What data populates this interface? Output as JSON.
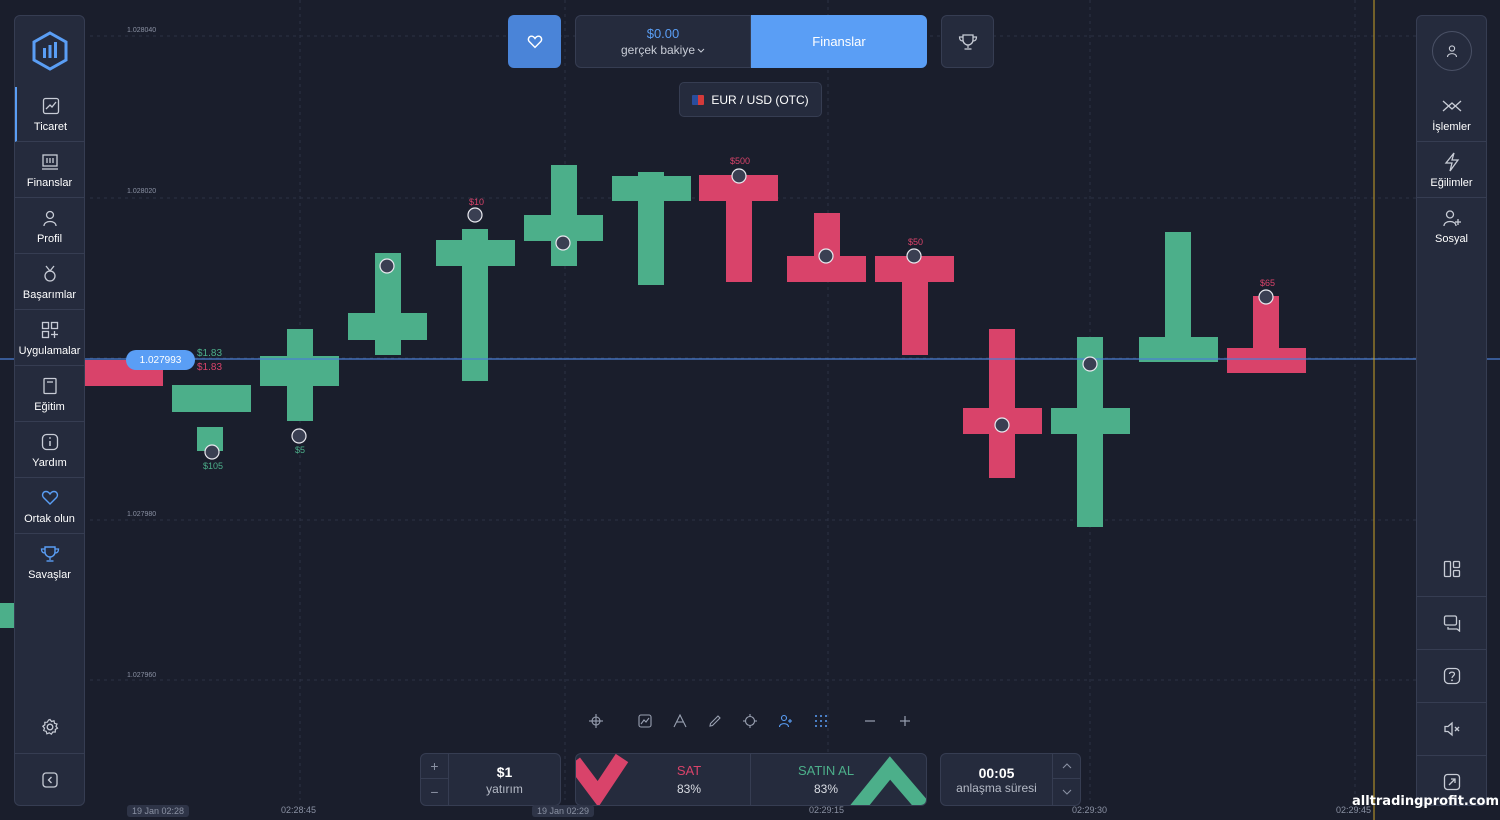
{
  "colors": {
    "bg": "#1a1e2c",
    "panel": "#252b3d",
    "accent": "#5a9ef5",
    "up": "#4caf8a",
    "down": "#d9436a",
    "price_line": "#4a7fd4"
  },
  "sidebar": {
    "items": [
      {
        "label": "Ticaret",
        "icon": "chart-line-icon",
        "active": true
      },
      {
        "label": "Finanslar",
        "icon": "finance-icon"
      },
      {
        "label": "Profil",
        "icon": "user-icon"
      },
      {
        "label": "Başarımlar",
        "icon": "medal-icon"
      },
      {
        "label": "Uygulamalar",
        "icon": "apps-icon"
      },
      {
        "label": "Eğitim",
        "icon": "book-icon"
      },
      {
        "label": "Yardım",
        "icon": "info-icon"
      },
      {
        "label": "Ortak olun",
        "icon": "heart-icon"
      },
      {
        "label": "Savaşlar",
        "icon": "trophy-icon"
      }
    ],
    "settings_icon": "gear-icon",
    "collapse_icon": "collapse-icon"
  },
  "right_panel": {
    "items": [
      {
        "label": "İşlemler",
        "icon": "trades-icon"
      },
      {
        "label": "Eğilimler",
        "icon": "lightning-icon"
      },
      {
        "label": "Sosyal",
        "icon": "add-user-icon"
      }
    ],
    "utilities": [
      "layout-icon",
      "chat-icon",
      "help-icon",
      "sound-off-icon",
      "fullscreen-icon"
    ]
  },
  "header": {
    "balance_amount": "$0.00",
    "balance_label": "gerçek bakiye",
    "finance_button": "Finanslar",
    "pair": "EUR / USD (OTC)"
  },
  "price": {
    "current": "1.027993",
    "pnl_up": "$1.83",
    "pnl_down": "$1.83",
    "axis_labels": [
      "1.028040",
      "1.028020",
      "1.027980",
      "1.027960"
    ]
  },
  "trade": {
    "investment_value": "$1",
    "investment_label": "yatırım",
    "sell_label": "SAT",
    "sell_pct": "83%",
    "buy_label": "SATIN AL",
    "buy_pct": "83%",
    "time_value": "00:05",
    "time_label": "anlaşma süresi",
    "plus": "+",
    "minus": "−"
  },
  "time_axis": [
    "19 Jan 02:28",
    "02:28:45",
    "19 Jan 02:29",
    "02:29:15",
    "02:29:30",
    "02:29:45"
  ],
  "trader_bets": [
    {
      "amount": "$105",
      "dir": "up"
    },
    {
      "amount": "$5",
      "dir": "up"
    },
    {
      "amount": "$10",
      "dir": "down"
    },
    {
      "amount": "$500",
      "dir": "down"
    },
    {
      "amount": "$50",
      "dir": "down"
    },
    {
      "amount": "$65",
      "dir": "down"
    }
  ],
  "watermark": "alltradingprofit.com"
}
